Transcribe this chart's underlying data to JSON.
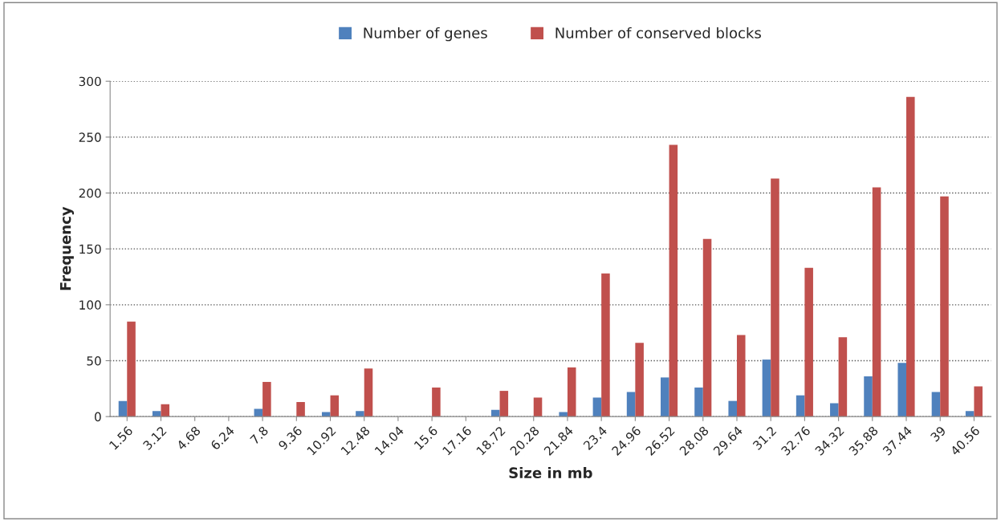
{
  "chart_data": {
    "type": "bar",
    "xlabel": "Size in mb",
    "ylabel": "Frequency",
    "categories": [
      "1.56",
      "3.12",
      "4.68",
      "6.24",
      "7.8",
      "9.36",
      "10.92",
      "12.48",
      "14.04",
      "15.6",
      "17.16",
      "18.72",
      "20.28",
      "21.84",
      "23.4",
      "24.96",
      "26.52",
      "28.08",
      "29.64",
      "31.2",
      "32.76",
      "34.32",
      "35.88",
      "37.44",
      "39",
      "40.56"
    ],
    "series": [
      {
        "name": "Number of genes",
        "color": "#4f81bd",
        "values": [
          14,
          5,
          0,
          0,
          7,
          0,
          4,
          5,
          0,
          0,
          0,
          6,
          0,
          4,
          17,
          22,
          35,
          26,
          14,
          51,
          19,
          12,
          36,
          48,
          22,
          5
        ]
      },
      {
        "name": "Number of conserved blocks",
        "color": "#c0504d",
        "values": [
          85,
          11,
          0,
          0,
          31,
          13,
          19,
          43,
          0,
          26,
          0,
          23,
          17,
          44,
          128,
          66,
          243,
          159,
          73,
          213,
          133,
          71,
          205,
          286,
          197,
          27
        ]
      }
    ],
    "ylim": [
      0,
      300
    ],
    "yticks": [
      0,
      50,
      100,
      150,
      200,
      250,
      300
    ],
    "grid": "y",
    "legend": "top"
  }
}
